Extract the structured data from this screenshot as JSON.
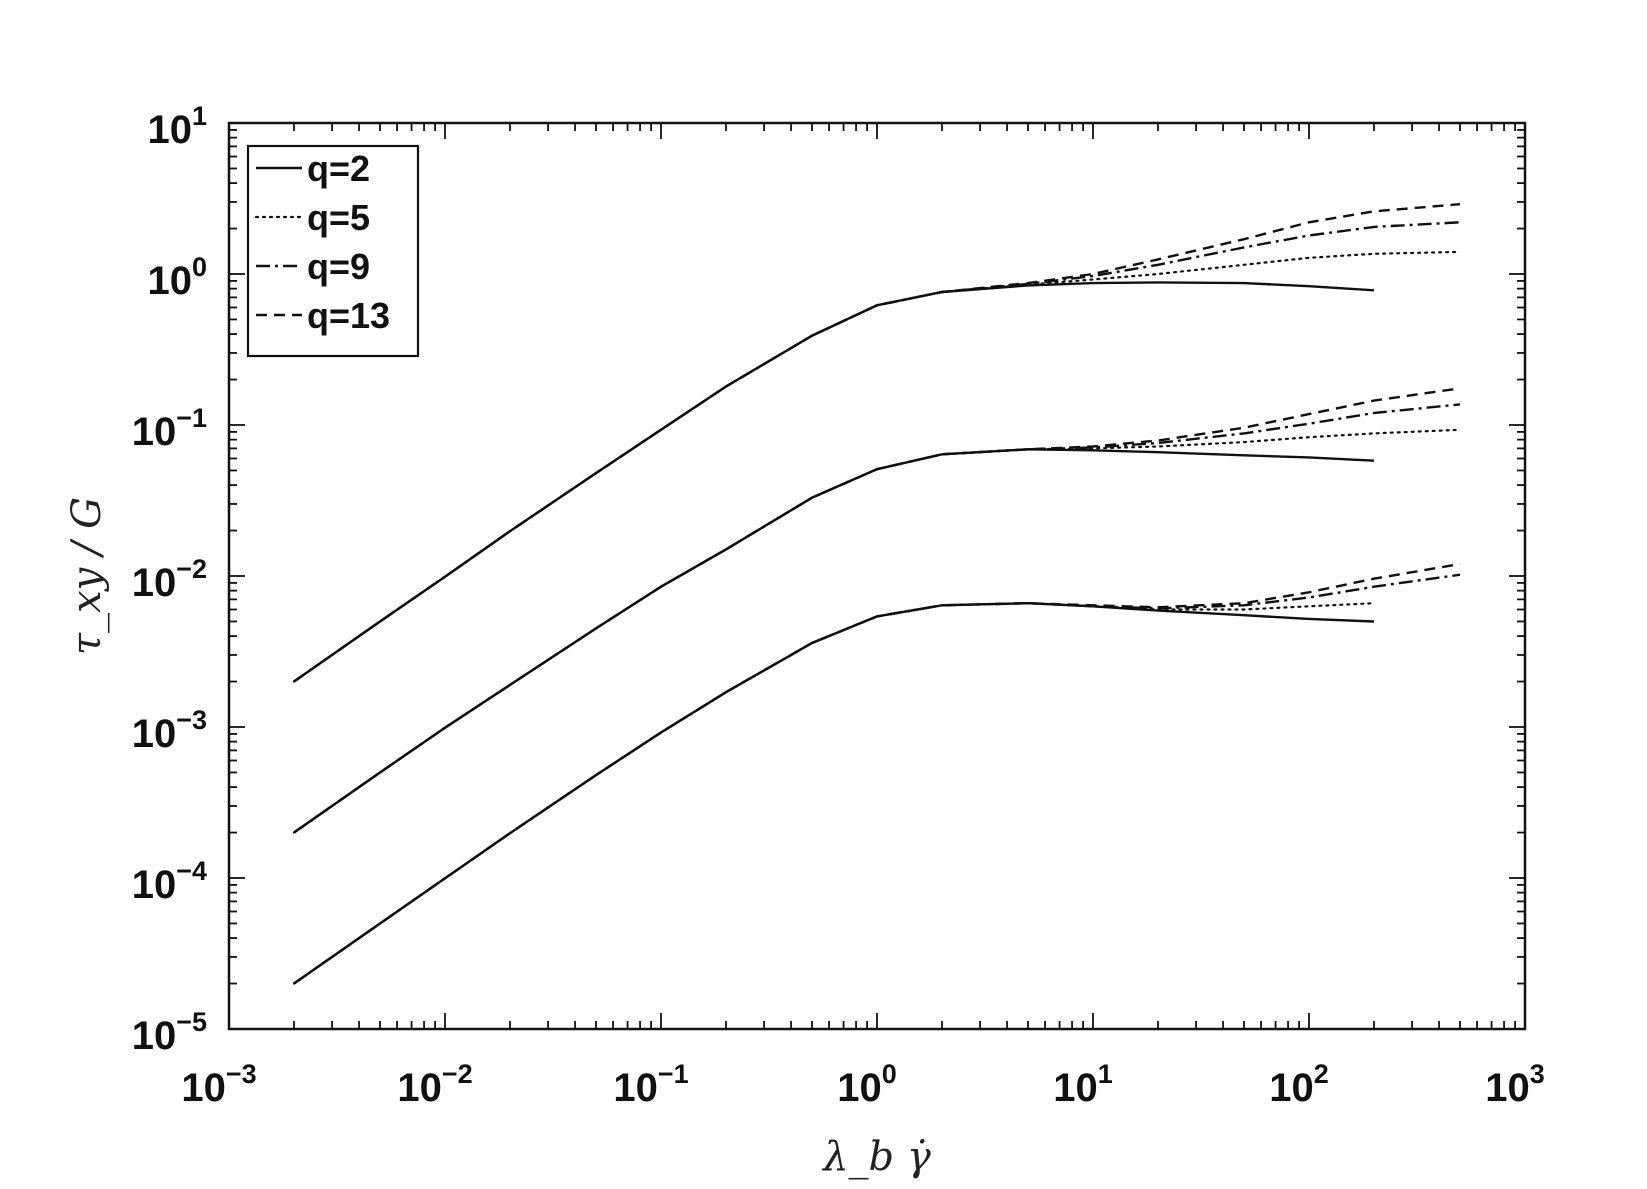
{
  "chart_data": {
    "type": "line",
    "title": "",
    "xlabel": "λ_b γ̇",
    "ylabel": "τ_xy / G",
    "xscale": "log",
    "yscale": "log",
    "xlim": [
      0.001,
      1000
    ],
    "ylim": [
      1e-05,
      10
    ],
    "x_ticks": [
      {
        "value": 0.001,
        "base": "10",
        "exp": "−3"
      },
      {
        "value": 0.01,
        "base": "10",
        "exp": "−2"
      },
      {
        "value": 0.1,
        "base": "10",
        "exp": "−1"
      },
      {
        "value": 1,
        "base": "10",
        "exp": "0"
      },
      {
        "value": 10,
        "base": "10",
        "exp": "1"
      },
      {
        "value": 100,
        "base": "10",
        "exp": "2"
      },
      {
        "value": 1000,
        "base": "10",
        "exp": "3"
      }
    ],
    "y_ticks": [
      {
        "value": 1e-05,
        "base": "10",
        "exp": "−5"
      },
      {
        "value": 0.0001,
        "base": "10",
        "exp": "−4"
      },
      {
        "value": 0.001,
        "base": "10",
        "exp": "−3"
      },
      {
        "value": 0.01,
        "base": "10",
        "exp": "−2"
      },
      {
        "value": 0.1,
        "base": "10",
        "exp": "−1"
      },
      {
        "value": 1,
        "base": "10",
        "exp": "0"
      },
      {
        "value": 10,
        "base": "10",
        "exp": "1"
      }
    ],
    "grid": false,
    "legend_position": "top-left",
    "legend": [
      {
        "label": "q=2",
        "style": "solid"
      },
      {
        "label": "q=5",
        "style": "dotted"
      },
      {
        "label": "q=9",
        "style": "dashdot"
      },
      {
        "label": "q=13",
        "style": "dashed"
      }
    ],
    "curve_groups": [
      {
        "group": "upper",
        "series": [
          {
            "legend": "q=2",
            "style": "solid",
            "x": [
              0.002,
              0.005,
              0.01,
              0.02,
              0.05,
              0.1,
              0.2,
              0.5,
              1,
              2,
              5,
              10,
              20,
              50,
              100,
              200
            ],
            "y": [
              0.002,
              0.005,
              0.0099,
              0.0198,
              0.048,
              0.093,
              0.18,
              0.39,
              0.62,
              0.76,
              0.84,
              0.87,
              0.88,
              0.87,
              0.83,
              0.78
            ]
          },
          {
            "legend": "q=5",
            "style": "dotted",
            "x": [
              0.002,
              0.005,
              0.01,
              0.02,
              0.05,
              0.1,
              0.2,
              0.5,
              1,
              2,
              5,
              10,
              20,
              50,
              100,
              200,
              500
            ],
            "y": [
              0.002,
              0.005,
              0.0099,
              0.0198,
              0.048,
              0.093,
              0.18,
              0.39,
              0.62,
              0.76,
              0.85,
              0.92,
              1.0,
              1.15,
              1.28,
              1.36,
              1.4
            ]
          },
          {
            "legend": "q=9",
            "style": "dashdot",
            "x": [
              0.002,
              0.005,
              0.01,
              0.02,
              0.05,
              0.1,
              0.2,
              0.5,
              1,
              2,
              5,
              10,
              20,
              50,
              100,
              200,
              500
            ],
            "y": [
              0.002,
              0.005,
              0.0099,
              0.0198,
              0.048,
              0.093,
              0.18,
              0.39,
              0.62,
              0.76,
              0.86,
              0.97,
              1.15,
              1.5,
              1.8,
              2.05,
              2.2
            ]
          },
          {
            "legend": "q=13",
            "style": "dashed",
            "x": [
              0.002,
              0.005,
              0.01,
              0.02,
              0.05,
              0.1,
              0.2,
              0.5,
              1,
              2,
              5,
              10,
              20,
              50,
              100,
              200,
              500
            ],
            "y": [
              0.002,
              0.005,
              0.0099,
              0.0198,
              0.048,
              0.093,
              0.18,
              0.39,
              0.62,
              0.76,
              0.87,
              1.0,
              1.25,
              1.7,
              2.2,
              2.6,
              2.9
            ]
          }
        ]
      },
      {
        "group": "middle",
        "series": [
          {
            "legend": "q=2",
            "style": "solid",
            "x": [
              0.002,
              0.005,
              0.01,
              0.02,
              0.05,
              0.1,
              0.2,
              0.5,
              1,
              2,
              5,
              10,
              20,
              50,
              100,
              200
            ],
            "y": [
              0.0002,
              0.0005,
              0.00099,
              0.0019,
              0.0045,
              0.0085,
              0.015,
              0.033,
              0.051,
              0.064,
              0.069,
              0.068,
              0.066,
              0.063,
              0.061,
              0.058
            ]
          },
          {
            "legend": "q=5",
            "style": "dotted",
            "x": [
              0.002,
              0.005,
              0.01,
              0.02,
              0.05,
              0.1,
              0.2,
              0.5,
              1,
              2,
              5,
              10,
              20,
              50,
              100,
              200,
              500
            ],
            "y": [
              0.0002,
              0.0005,
              0.00099,
              0.0019,
              0.0045,
              0.0085,
              0.015,
              0.033,
              0.051,
              0.064,
              0.069,
              0.07,
              0.072,
              0.077,
              0.083,
              0.088,
              0.093
            ]
          },
          {
            "legend": "q=9",
            "style": "dashdot",
            "x": [
              0.002,
              0.005,
              0.01,
              0.02,
              0.05,
              0.1,
              0.2,
              0.5,
              1,
              2,
              5,
              10,
              20,
              50,
              100,
              200,
              500
            ],
            "y": [
              0.0002,
              0.0005,
              0.00099,
              0.0019,
              0.0045,
              0.0085,
              0.015,
              0.033,
              0.051,
              0.064,
              0.069,
              0.071,
              0.076,
              0.088,
              0.102,
              0.12,
              0.137
            ]
          },
          {
            "legend": "q=13",
            "style": "dashed",
            "x": [
              0.002,
              0.005,
              0.01,
              0.02,
              0.05,
              0.1,
              0.2,
              0.5,
              1,
              2,
              5,
              10,
              20,
              50,
              100,
              200,
              500
            ],
            "y": [
              0.0002,
              0.0005,
              0.00099,
              0.0019,
              0.0045,
              0.0085,
              0.015,
              0.033,
              0.051,
              0.064,
              0.069,
              0.072,
              0.079,
              0.096,
              0.118,
              0.145,
              0.175
            ]
          }
        ]
      },
      {
        "group": "lower",
        "series": [
          {
            "legend": "q=2",
            "style": "solid",
            "x": [
              0.002,
              0.005,
              0.01,
              0.02,
              0.05,
              0.1,
              0.2,
              0.5,
              1,
              2,
              5,
              10,
              20,
              50,
              100,
              200
            ],
            "y": [
              2e-05,
              5e-05,
              9.95e-05,
              0.000198,
              0.00048,
              0.00092,
              0.0017,
              0.0036,
              0.0054,
              0.0064,
              0.0066,
              0.0063,
              0.0059,
              0.0055,
              0.0052,
              0.005
            ]
          },
          {
            "legend": "q=5",
            "style": "dotted",
            "x": [
              0.002,
              0.005,
              0.01,
              0.02,
              0.05,
              0.1,
              0.2,
              0.5,
              1,
              2,
              5,
              10,
              20,
              50,
              100,
              200
            ],
            "y": [
              2e-05,
              5e-05,
              9.95e-05,
              0.000198,
              0.00048,
              0.00092,
              0.0017,
              0.0036,
              0.0054,
              0.0064,
              0.0066,
              0.0063,
              0.006,
              0.006,
              0.0063,
              0.0066
            ]
          },
          {
            "legend": "q=9",
            "style": "dashdot",
            "x": [
              0.002,
              0.005,
              0.01,
              0.02,
              0.05,
              0.1,
              0.2,
              0.5,
              1,
              2,
              5,
              10,
              20,
              50,
              100,
              200,
              500
            ],
            "y": [
              2e-05,
              5e-05,
              9.95e-05,
              0.000198,
              0.00048,
              0.00092,
              0.0017,
              0.0036,
              0.0054,
              0.0064,
              0.0066,
              0.0063,
              0.0061,
              0.0064,
              0.0072,
              0.0085,
              0.0102
            ]
          },
          {
            "legend": "q=13",
            "style": "dashed",
            "x": [
              0.002,
              0.005,
              0.01,
              0.02,
              0.05,
              0.1,
              0.2,
              0.5,
              1,
              2,
              5,
              10,
              20,
              50,
              100,
              200,
              500
            ],
            "y": [
              2e-05,
              5e-05,
              9.95e-05,
              0.000198,
              0.00048,
              0.00092,
              0.0017,
              0.0036,
              0.0054,
              0.0064,
              0.0066,
              0.0064,
              0.0062,
              0.0066,
              0.0078,
              0.0096,
              0.012
            ]
          }
        ]
      }
    ]
  }
}
